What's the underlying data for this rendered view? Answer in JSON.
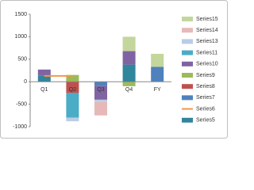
{
  "chart_data": {
    "type": "bar",
    "stacked": true,
    "categories": [
      "Q1",
      "Q2",
      "Q3",
      "Q4",
      "FY"
    ],
    "ylim": [
      -1000,
      1500
    ],
    "yticks": [
      -1000,
      -500,
      0,
      500,
      1000,
      1500
    ],
    "grid": false,
    "legend": "right",
    "series": [
      {
        "name": "Series5",
        "color": "#31859c",
        "values": [
          140,
          0,
          0,
          380,
          0
        ]
      },
      {
        "name": "Series6",
        "color": "#f79646",
        "type": "line",
        "values": [
          130,
          130,
          null,
          null,
          null
        ]
      },
      {
        "name": "Series7",
        "color": "#4f81bd",
        "values": [
          0,
          0,
          -100,
          0,
          330
        ]
      },
      {
        "name": "Series8",
        "color": "#c0504d",
        "values": [
          0,
          -250,
          0,
          0,
          0
        ]
      },
      {
        "name": "Series9",
        "color": "#9bbb59",
        "values": [
          0,
          150,
          0,
          -100,
          0
        ]
      },
      {
        "name": "Series10",
        "color": "#8064a2",
        "values": [
          130,
          0,
          -300,
          300,
          0
        ]
      },
      {
        "name": "Series11",
        "color": "#4bacc6",
        "values": [
          0,
          -550,
          0,
          0,
          0
        ]
      },
      {
        "name": "Series13",
        "color": "#b9cde5",
        "values": [
          0,
          -80,
          -50,
          0,
          0
        ]
      },
      {
        "name": "Series14",
        "color": "#e6b9b8",
        "values": [
          0,
          0,
          -300,
          0,
          0
        ]
      },
      {
        "name": "Series15",
        "color": "#c3d69b",
        "values": [
          0,
          0,
          0,
          320,
          290
        ]
      }
    ]
  }
}
